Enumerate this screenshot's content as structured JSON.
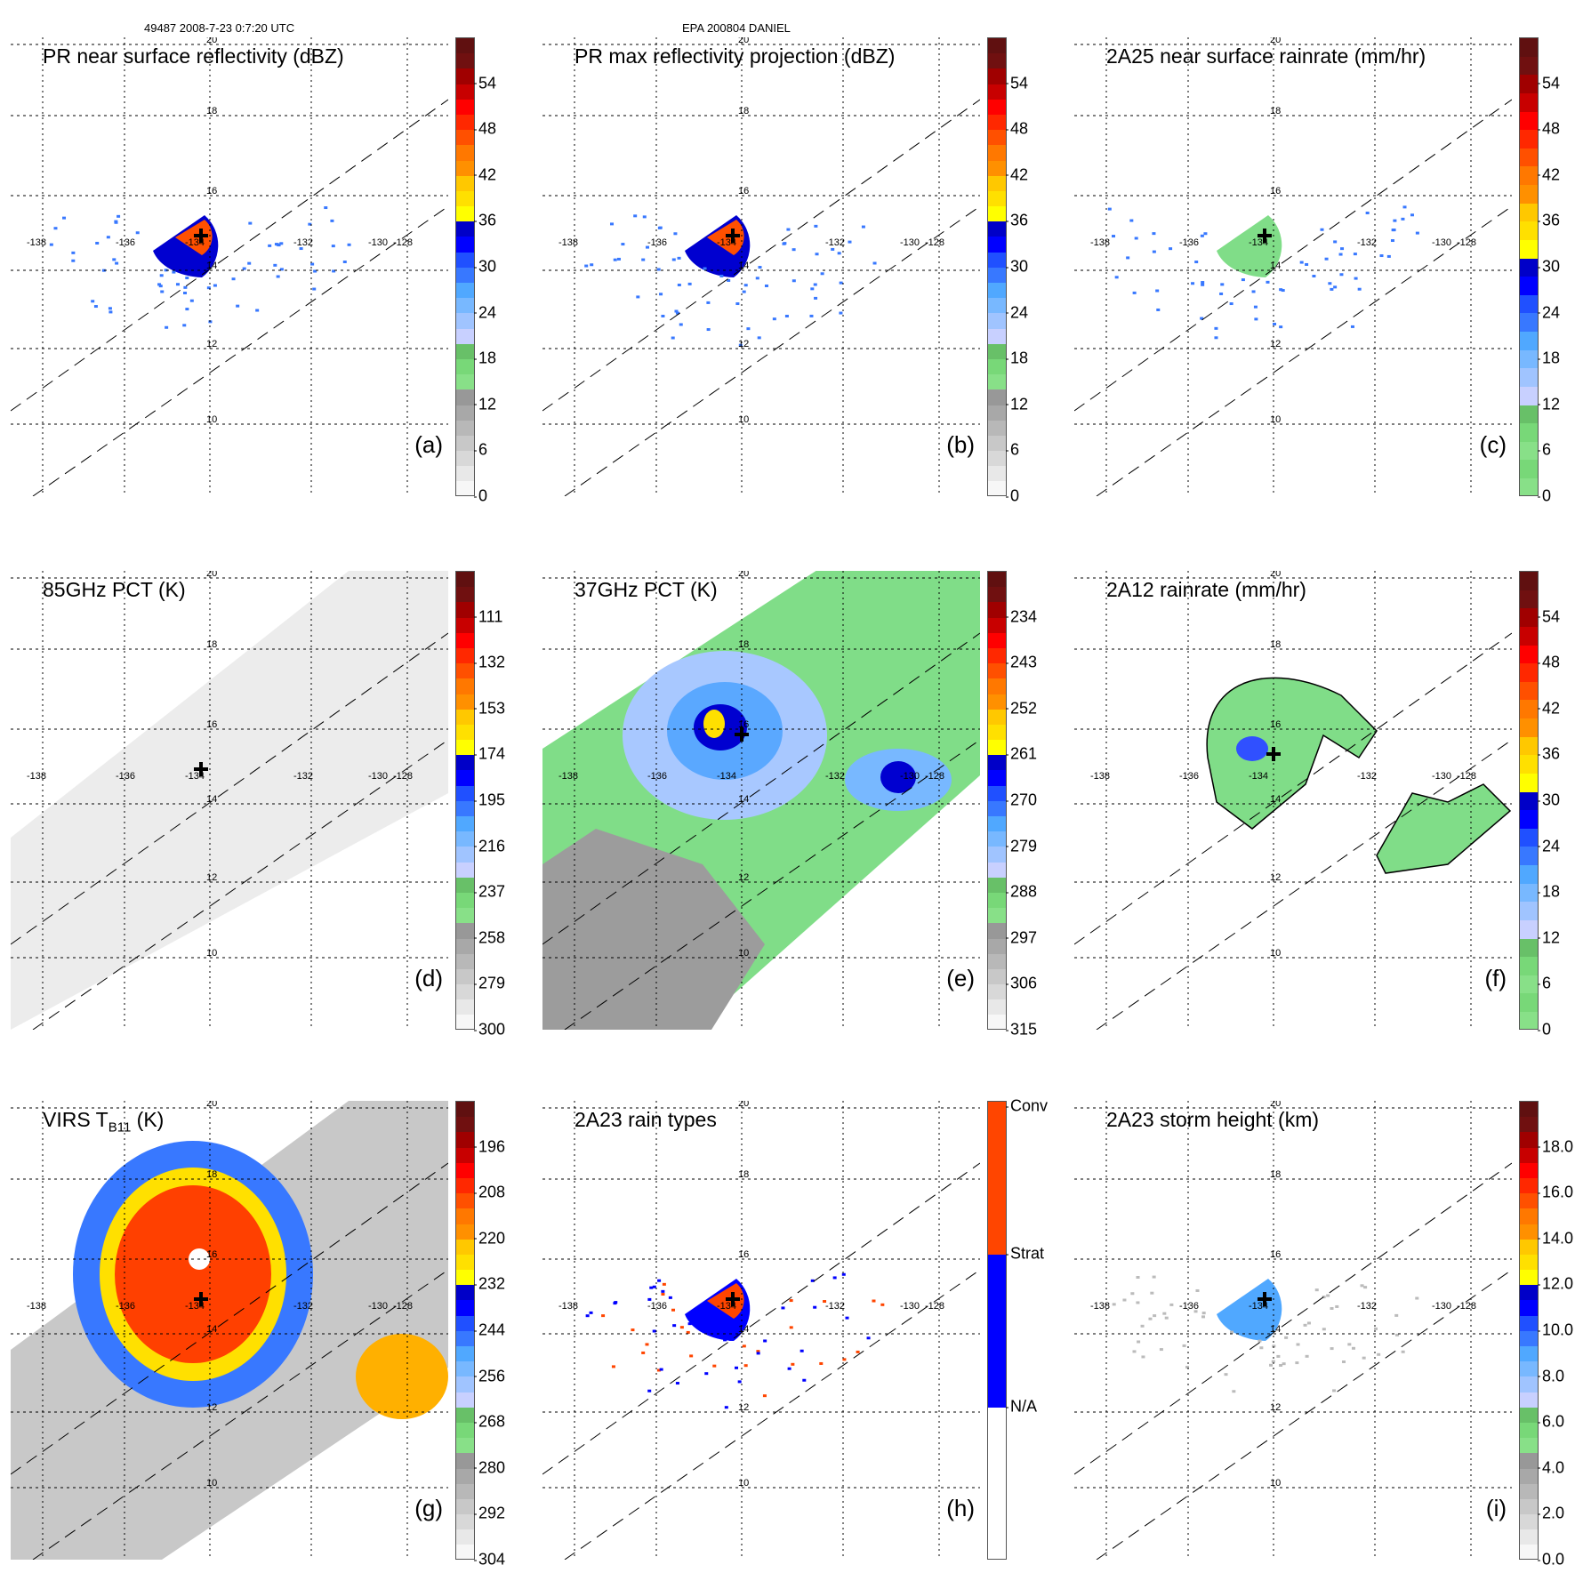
{
  "header": {
    "left": "49487 2008-7-23 0:7:20 UTC",
    "center": "EPA 200804 DANIEL"
  },
  "map_labels": {
    "longitudes": [
      "-138",
      "-136",
      "-134",
      "-132",
      "-130",
      "-128"
    ],
    "latitudes": [
      "20",
      "18",
      "16",
      "14",
      "12",
      "10"
    ]
  },
  "palette": {
    "standard": [
      "#f7f7f7",
      "#e8e8e8",
      "#d8d8d8",
      "#c8c8c8",
      "#b8b8b8",
      "#a8a8a8",
      "#989898",
      "#88e088",
      "#78d878",
      "#68c068",
      "#c8d0ff",
      "#a0c4ff",
      "#78b8ff",
      "#50a8ff",
      "#3878ff",
      "#2050ff",
      "#0000ff",
      "#0000c8",
      "#ffff00",
      "#ffe000",
      "#ffc800",
      "#ff9000",
      "#ff7800",
      "#ff5000",
      "#ff2800",
      "#ff0000",
      "#c80000",
      "#a00000",
      "#701010",
      "#601010"
    ],
    "rain_types": {
      "conv": "#ff4500",
      "strat": "#0000ff",
      "na": "#ffffff"
    }
  },
  "panels": [
    {
      "id": "a",
      "title": "PR near surface reflectivity (dBZ)",
      "label": "(a)",
      "ticks": [
        "54",
        "48",
        "42",
        "36",
        "30",
        "24",
        "18",
        "12",
        "6",
        "0"
      ],
      "field": "pr_ref",
      "colorbar": "standard"
    },
    {
      "id": "b",
      "title": "PR max reflectivity projection (dBZ)",
      "label": "(b)",
      "ticks": [
        "54",
        "48",
        "42",
        "36",
        "30",
        "24",
        "18",
        "12",
        "6",
        "0"
      ],
      "field": "pr_max",
      "colorbar": "standard"
    },
    {
      "id": "c",
      "title": "2A25 near surface rainrate (mm/hr)",
      "label": "(c)",
      "ticks": [
        "54",
        "48",
        "42",
        "36",
        "30",
        "24",
        "18",
        "12",
        "6",
        "0"
      ],
      "field": "rain25",
      "colorbar": "rain"
    },
    {
      "id": "d",
      "title": "85GHz PCT (K)",
      "label": "(d)",
      "ticks": [
        "111",
        "132",
        "153",
        "174",
        "195",
        "216",
        "237",
        "258",
        "279",
        "300"
      ],
      "field": "pct85",
      "colorbar": "standard"
    },
    {
      "id": "e",
      "title": "37GHz PCT (K)",
      "label": "(e)",
      "ticks": [
        "234",
        "243",
        "252",
        "261",
        "270",
        "279",
        "288",
        "297",
        "306",
        "315"
      ],
      "field": "pct37",
      "colorbar": "standard"
    },
    {
      "id": "f",
      "title": "2A12 rainrate (mm/hr)",
      "label": "(f)",
      "ticks": [
        "54",
        "48",
        "42",
        "36",
        "30",
        "24",
        "18",
        "12",
        "6",
        "0"
      ],
      "field": "rain12",
      "colorbar": "rain"
    },
    {
      "id": "g",
      "title": "VIRS T",
      "title_sub": "B11",
      "title_tail": " (K)",
      "label": "(g)",
      "ticks": [
        "196",
        "208",
        "220",
        "232",
        "244",
        "256",
        "268",
        "280",
        "292",
        "304"
      ],
      "field": "virs",
      "colorbar": "standard"
    },
    {
      "id": "h",
      "title": "2A23 rain types",
      "label": "(h)",
      "ticks": [
        "Conv",
        "Strat",
        "N/A"
      ],
      "field": "types",
      "colorbar": "types"
    },
    {
      "id": "i",
      "title": "2A23 storm height (km)",
      "label": "(i)",
      "ticks": [
        "18.0",
        "16.0",
        "14.0",
        "12.0",
        "10.0",
        "8.0",
        "6.0",
        "4.0",
        "2.0",
        "0.0"
      ],
      "field": "height",
      "colorbar": "standard"
    }
  ]
}
